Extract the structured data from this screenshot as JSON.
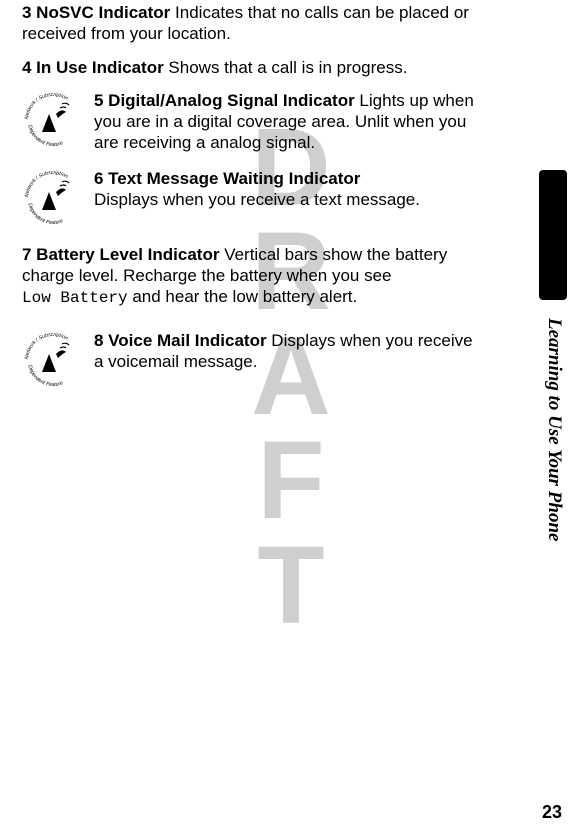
{
  "watermark": "DRAFT",
  "item3": {
    "title": "3 NoSVC Indicator",
    "desc": "  Indicates that no calls can be placed or received from your location."
  },
  "item4": {
    "title": "4 In Use Indicator",
    "desc": "  Shows that a call is in progress."
  },
  "item5": {
    "title": "5 Digital/Analog Signal Indicator",
    "desc": "  Lights up when you are in a digital coverage area. Unlit when you are receiving a analog signal."
  },
  "item6": {
    "title": "6 Text Message Waiting Indicator",
    "desc": "Displays when you receive a text message."
  },
  "item7": {
    "title": "7 Battery Level Indicator",
    "desc_a": "  Vertical bars show the battery charge level. Recharge the battery when you see ",
    "mono": "Low Battery",
    "desc_b": " and hear the low battery alert."
  },
  "item8": {
    "title": "8 Voice Mail Indicator",
    "desc": "  Displays when you receive a voicemail message."
  },
  "icon_label_top": "Network / Subscription",
  "icon_label_bottom": "Dependent  Feature",
  "side_text": "Learning to Use Your Phone",
  "page_number": "23"
}
